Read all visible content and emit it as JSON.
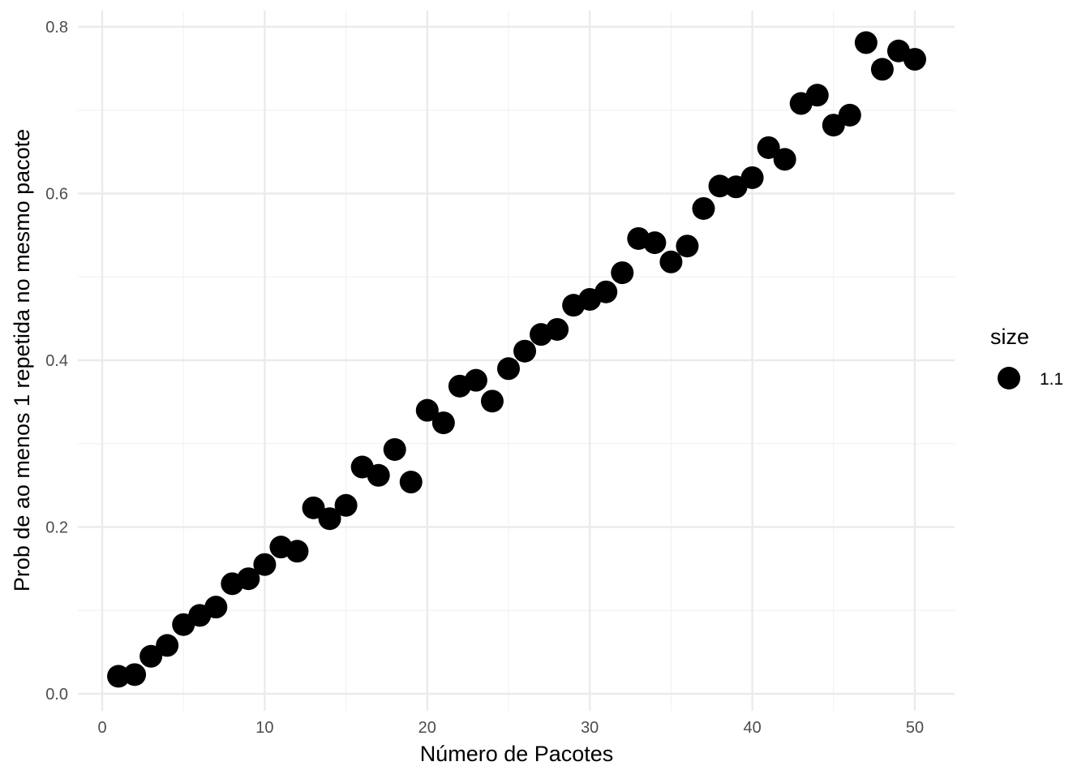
{
  "chart_data": {
    "type": "scatter",
    "xlabel": "Número de Pacotes",
    "ylabel": "Prob de ao menos 1 repetida no mesmo pacote",
    "xlim": [
      0,
      52.5
    ],
    "ylim": [
      0,
      0.8
    ],
    "x_ticks": [
      0,
      10,
      20,
      30,
      40,
      50
    ],
    "x_tick_labels": [
      "0",
      "10",
      "20",
      "30",
      "40",
      "50"
    ],
    "y_ticks": [
      0.0,
      0.2,
      0.4,
      0.6,
      0.8
    ],
    "y_tick_labels": [
      "0.0",
      "0.2",
      "0.4",
      "0.6",
      "0.8"
    ],
    "grid": true,
    "legend": {
      "title": "size",
      "entries": [
        "1.1"
      ],
      "placement": "right"
    },
    "point_color": "#000000",
    "series": [
      {
        "x": [
          1,
          2,
          3,
          4,
          5,
          6,
          7,
          8,
          9,
          10,
          11,
          12,
          13,
          14,
          15,
          16,
          17,
          18,
          19,
          20,
          21,
          22,
          23,
          24,
          25,
          26,
          27,
          28,
          29,
          30,
          31,
          32,
          33,
          34,
          35,
          36,
          37,
          38,
          39,
          40,
          41,
          42,
          43,
          44,
          45,
          46,
          47,
          48,
          49,
          50
        ],
        "y": [
          0.021,
          0.023,
          0.045,
          0.058,
          0.083,
          0.094,
          0.104,
          0.132,
          0.138,
          0.155,
          0.176,
          0.171,
          0.223,
          0.21,
          0.226,
          0.272,
          0.262,
          0.293,
          0.254,
          0.34,
          0.325,
          0.369,
          0.376,
          0.351,
          0.39,
          0.411,
          0.431,
          0.437,
          0.466,
          0.473,
          0.482,
          0.505,
          0.546,
          0.541,
          0.518,
          0.537,
          0.582,
          0.609,
          0.608,
          0.619,
          0.655,
          0.641,
          0.708,
          0.718,
          0.682,
          0.694,
          0.781,
          0.749,
          0.771,
          0.761
        ]
      }
    ]
  }
}
